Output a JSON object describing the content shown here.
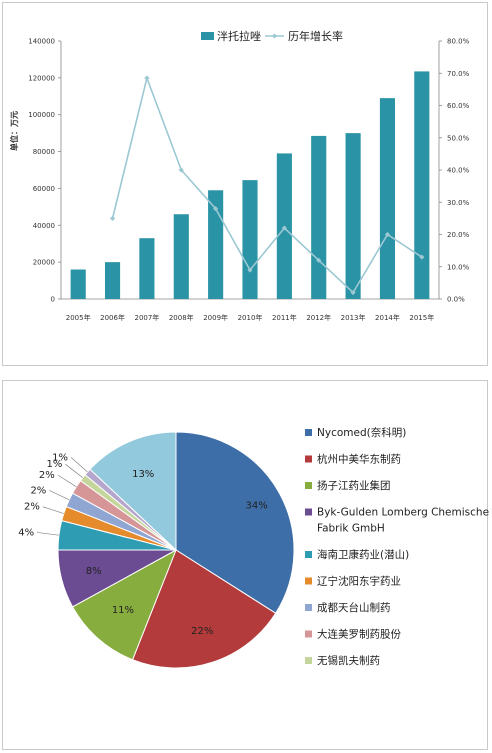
{
  "chart_data": [
    {
      "type": "bar",
      "ylabel": "单位：万元",
      "categories": [
        "2005年",
        "2006年",
        "2007年",
        "2008年",
        "2009年",
        "2010年",
        "2011年",
        "2012年",
        "2013年",
        "2014年",
        "2015年"
      ],
      "series": [
        {
          "name": "泮托拉唑",
          "type": "bar",
          "axis": "left",
          "color": "#2a93a5",
          "values": [
            16000,
            20000,
            33000,
            46000,
            59000,
            64500,
            79000,
            88500,
            90000,
            109000,
            123500
          ]
        },
        {
          "name": "历年增长率",
          "type": "line",
          "axis": "right",
          "color": "#9cc8d3",
          "values": [
            null,
            0.25,
            0.685,
            0.4,
            0.28,
            0.09,
            0.22,
            0.12,
            0.02,
            0.2,
            0.13
          ]
        }
      ],
      "ylim": [
        0,
        140000
      ],
      "yticks": [
        "0",
        "20000",
        "40000",
        "60000",
        "80000",
        "100000",
        "120000",
        "140000"
      ],
      "y2lim": [
        0,
        0.8
      ],
      "y2ticks": [
        "0.0%",
        "10.0%",
        "20.0%",
        "30.0%",
        "40.0%",
        "50.0%",
        "60.0%",
        "70.0%",
        "80.0%"
      ],
      "legend": "top"
    },
    {
      "type": "pie",
      "slices": [
        {
          "name": "Nycomed(奈科明)",
          "value": 34,
          "label": "34%",
          "color": "#3d6ea8"
        },
        {
          "name": "杭州中美华东制药",
          "value": 22,
          "label": "22%",
          "color": "#b33b3b"
        },
        {
          "name": "扬子江药业集团",
          "value": 11,
          "label": "11%",
          "color": "#88ad3f"
        },
        {
          "name": "Byk-Gulden Lomberg Chemische Fabrik GmbH",
          "value": 8,
          "label": "8%",
          "color": "#6b4c93"
        },
        {
          "name": "海南卫康药业(潜山)",
          "value": 4,
          "label": "4%",
          "color": "#2e9db3"
        },
        {
          "name": "辽宁沈阳东宇药业",
          "value": 2,
          "label": "2%",
          "color": "#e58b2c"
        },
        {
          "name": "成都天台山制药",
          "value": 2,
          "label": "2%",
          "color": "#8fa6d3"
        },
        {
          "name": "大连美罗制药股份",
          "value": 2,
          "label": "2%",
          "color": "#d69698"
        },
        {
          "name": "无锡凯夫制药",
          "value": 1,
          "label": "1%",
          "color": "#c4d69b"
        },
        {
          "name": "",
          "value": 1,
          "label": "1%",
          "color": "#b4a6cc"
        },
        {
          "name": "",
          "value": 13,
          "label": "13%",
          "color": "#93c9dc"
        }
      ],
      "legend": "right"
    }
  ]
}
